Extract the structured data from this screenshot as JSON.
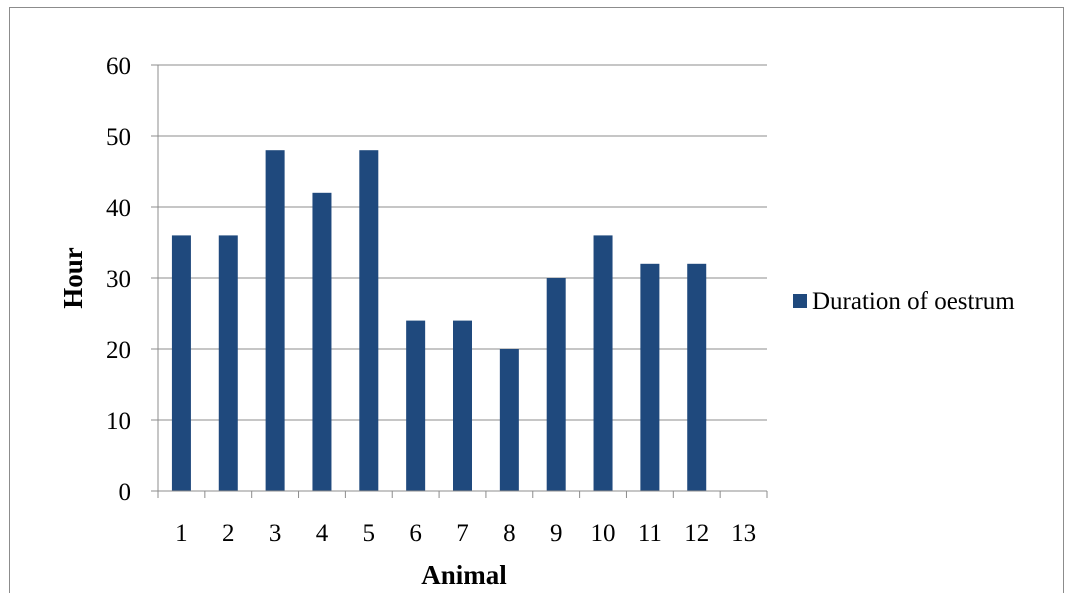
{
  "chart_data": {
    "type": "bar",
    "categories": [
      "1",
      "2",
      "3",
      "4",
      "5",
      "6",
      "7",
      "8",
      "9",
      "10",
      "11",
      "12",
      "13"
    ],
    "series": [
      {
        "name": "Duration of oestrum",
        "color": "#1f497d",
        "values": [
          36,
          36,
          48,
          42,
          48,
          24,
          24,
          20,
          30,
          36,
          32,
          32,
          null
        ]
      }
    ],
    "title": "",
    "xlabel": "Animal",
    "ylabel": "Hour",
    "ylim": [
      0,
      60
    ],
    "yticks": [
      "0",
      "10",
      "20",
      "30",
      "40",
      "50",
      "60"
    ],
    "grid": true,
    "legend_position": "right"
  }
}
